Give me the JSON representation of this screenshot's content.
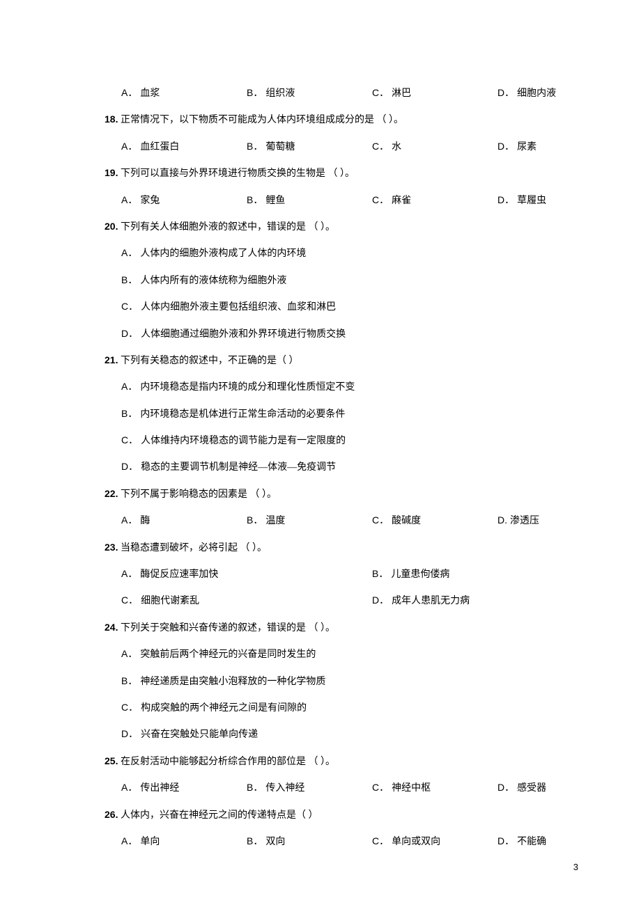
{
  "page_number": "3",
  "q17_options": {
    "A": "血浆",
    "B": "组织液",
    "C": "淋巴",
    "D": "细胞内液"
  },
  "q18": {
    "num": "18.",
    "stem": "正常情况下，以下物质不可能成为人体内环境组成成分的是 （ ）。",
    "A": "血红蛋白",
    "B": "葡萄糖",
    "C": "水",
    "D": "尿素"
  },
  "q19": {
    "num": "19.",
    "stem": "下列可以直接与外界环境进行物质交换的生物是 （ ）。",
    "A": "家兔",
    "B": "鲤鱼",
    "C": "麻雀",
    "D": "草履虫"
  },
  "q20": {
    "num": "20.",
    "stem": "下列有关人体细胞外液的叙述中，错误的是 （ ）。",
    "A": "人体内的细胞外液构成了人体的内环境",
    "B": "人体内所有的液体统称为细胞外液",
    "C": "人体内细胞外液主要包括组织液、血浆和淋巴",
    "D": "人体细胞通过细胞外液和外界环境进行物质交换"
  },
  "q21": {
    "num": "21.",
    "stem": "下列有关稳态的叙述中，不正确的是（  ）",
    "A": "内环境稳态是指内环境的成分和理化性质恒定不变",
    "B": "内环境稳态是机体进行正常生命活动的必要条件",
    "C": "人体维持内环境稳态的调节能力是有一定限度的",
    "D": "稳态的主要调节机制是神经—体液—免疫调节"
  },
  "q22": {
    "num": "22.",
    "stem": "下列不属于影响稳态的因素是 （ ）。",
    "A": "酶",
    "B": "温度",
    "C": "酸碱度",
    "D": "渗透压"
  },
  "q23": {
    "num": "23.",
    "stem": "当稳态遭到破坏，必将引起 （ ）。",
    "A": "酶促反应速率加快",
    "B": "儿童患佝偻病",
    "C": "细胞代谢紊乱",
    "D": "成年人患肌无力病"
  },
  "q24": {
    "num": "24.",
    "stem": "下列关于突触和兴奋传递的叙述，错误的是 （ ）。",
    "A": "突触前后两个神经元的兴奋是同时发生的",
    "B": "神经递质是由突触小泡释放的一种化学物质",
    "C": "构成突触的两个神经元之间是有间隙的",
    "D": "兴奋在突触处只能单向传递"
  },
  "q25": {
    "num": "25.",
    "stem": "在反射活动中能够起分析综合作用的部位是 （ ）。",
    "A": "传出神经",
    "B": "传入神经",
    "C": "神经中枢",
    "D": "感受器"
  },
  "q26": {
    "num": "26.",
    "stem": "人体内，兴奋在神经元之间的传递特点是（  ）",
    "A": "单向",
    "B": "双向",
    "C": "单向或双向",
    "D": "不能确"
  }
}
